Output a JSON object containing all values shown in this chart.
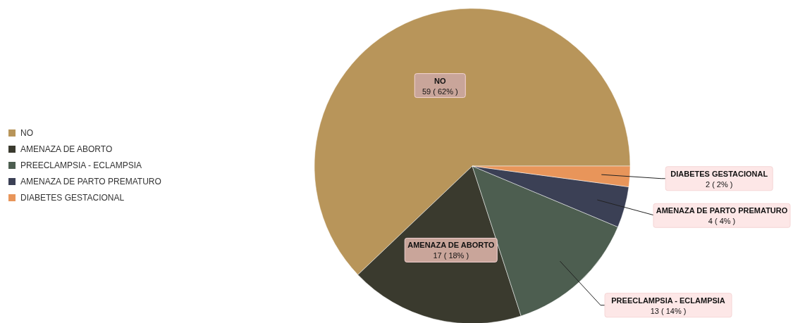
{
  "chart_data": {
    "type": "pie",
    "categories": [
      "NO",
      "AMENAZA DE ABORTO",
      "PREECLAMPSIA - ECLAMPSIA",
      "AMENAZA DE PARTO PREMATURO",
      "DIABETES GESTACIONAL"
    ],
    "values": [
      59,
      17,
      13,
      4,
      2
    ],
    "value_labels": [
      "59 ( 62% )",
      "17 ( 18% )",
      "13 ( 14% )",
      "4 ( 4% )",
      "2 ( 2% )"
    ],
    "colors": [
      "#b8955a",
      "#3a3a2e",
      "#4d5e50",
      "#3b4055",
      "#e8955a"
    ],
    "legend": "left"
  }
}
